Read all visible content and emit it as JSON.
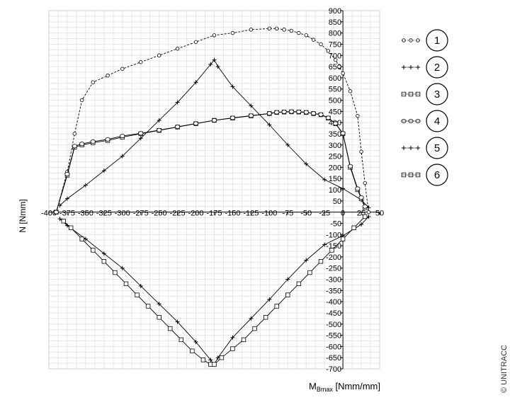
{
  "chart_data": {
    "type": "line",
    "xlabel_main": "M",
    "xlabel_sub": "Bmax",
    "xlabel_rest": " [Nmm/mm]",
    "ylabel": "N [Nmm]",
    "xlim": [
      -400,
      50
    ],
    "ylim": [
      -700,
      900
    ],
    "x_ticks": [
      -400,
      -375,
      -350,
      -325,
      -300,
      -275,
      -250,
      -225,
      -200,
      -175,
      -150,
      -125,
      -100,
      -75,
      -50,
      -25,
      0,
      25,
      50
    ],
    "x_tick_labels": [
      "-400",
      "-375",
      "-350",
      "-325",
      "-300",
      "-275",
      "-250",
      "-225",
      "-200",
      "-175",
      "-150",
      "-125",
      "-100",
      "-75",
      "-50",
      "-25",
      "0",
      "25",
      "50"
    ],
    "y_ticks": [
      900,
      850,
      800,
      750,
      700,
      650,
      600,
      550,
      500,
      450,
      400,
      350,
      300,
      250,
      200,
      150,
      100,
      50,
      -50,
      -100,
      -150,
      -200,
      -250,
      -300,
      -350,
      -400,
      -450,
      -500,
      -550,
      -600,
      -650,
      -700
    ],
    "y_tick_labels": [
      "900",
      "850",
      "800",
      "750",
      "700",
      "650",
      "600",
      "550",
      "500",
      "450",
      "400",
      "350",
      "300",
      "250",
      "200",
      "150",
      "100",
      "50",
      "-50",
      "-100",
      "-150",
      "-200",
      "-250",
      "-300",
      "-350",
      "-400",
      "-450",
      "-500",
      "-550",
      "-600",
      "-650",
      "-700"
    ],
    "grid": true,
    "legend_position": "right",
    "series": [
      {
        "name": "1",
        "marker": "small-circle",
        "dashed": true,
        "x": [
          -390,
          -375,
          -365,
          -355,
          -340,
          -320,
          -300,
          -275,
          -250,
          -225,
          -200,
          -175,
          -150,
          -125,
          -100,
          -90,
          -80,
          -70,
          -60,
          -50,
          -40,
          -30,
          -20,
          -10,
          -5,
          0,
          10,
          20,
          25,
          30,
          35
        ],
        "y": [
          0,
          180,
          350,
          500,
          580,
          610,
          640,
          670,
          700,
          730,
          760,
          790,
          800,
          815,
          820,
          820,
          815,
          810,
          800,
          790,
          770,
          750,
          720,
          680,
          650,
          620,
          540,
          430,
          270,
          130,
          0
        ]
      },
      {
        "name": "2",
        "marker": "plus",
        "dashed": false,
        "x": [
          -385,
          -375,
          -350,
          -325,
          -300,
          -275,
          -250,
          -225,
          -200,
          -180,
          -175,
          -170,
          -150,
          -125,
          -100,
          -75,
          -50,
          -25,
          0,
          25,
          35
        ],
        "y": [
          30,
          60,
          120,
          185,
          250,
          330,
          410,
          490,
          580,
          660,
          680,
          650,
          560,
          475,
          390,
          300,
          215,
          145,
          105,
          55,
          20
        ]
      },
      {
        "name": "3",
        "marker": "square",
        "dashed": false,
        "x": [
          -390,
          -375,
          -365,
          -355,
          -340,
          -320,
          -300,
          -275,
          -250,
          -225,
          -200,
          -175,
          -150,
          -125,
          -100,
          -90,
          -80,
          -70,
          -60,
          -50,
          -40,
          -30,
          -20,
          -10,
          0,
          10,
          20,
          25,
          30
        ],
        "y": [
          0,
          165,
          290,
          300,
          310,
          320,
          335,
          350,
          365,
          380,
          395,
          410,
          420,
          430,
          440,
          445,
          447,
          448,
          447,
          445,
          440,
          435,
          420,
          395,
          350,
          200,
          100,
          60,
          20
        ]
      },
      {
        "name": "4",
        "marker": "circle",
        "dashed": false,
        "x": [
          -390,
          -375,
          -365,
          -355,
          -340,
          -320,
          -300,
          -275,
          -250,
          -225,
          -200,
          -175,
          -150,
          -125,
          -100,
          -90,
          -80,
          -70,
          -60,
          -50,
          -40,
          -30,
          -20,
          -10,
          0,
          10,
          20,
          25,
          30
        ],
        "y": [
          0,
          170,
          295,
          305,
          315,
          325,
          340,
          352,
          366,
          381,
          396,
          410,
          421,
          431,
          441,
          446,
          448,
          449,
          448,
          446,
          441,
          436,
          421,
          396,
          352,
          205,
          105,
          65,
          25
        ]
      },
      {
        "name": "5",
        "marker": "plus",
        "dashed": false,
        "x": [
          -385,
          -375,
          -350,
          -325,
          -300,
          -275,
          -250,
          -225,
          -200,
          -180,
          -175,
          -170,
          -150,
          -125,
          -100,
          -75,
          -50,
          -25,
          0,
          25,
          35
        ],
        "y": [
          -30,
          -60,
          -120,
          -185,
          -250,
          -330,
          -410,
          -490,
          -580,
          -660,
          -680,
          -650,
          -560,
          -475,
          -390,
          -300,
          -215,
          -145,
          -105,
          -55,
          -20
        ]
      },
      {
        "name": "6",
        "marker": "square",
        "dashed": false,
        "x": [
          -380,
          -370,
          -355,
          -340,
          -325,
          -310,
          -295,
          -280,
          -265,
          -250,
          -235,
          -220,
          -205,
          -190,
          -180,
          -175,
          -165,
          -150,
          -135,
          -120,
          -105,
          -90,
          -75,
          -60,
          -45,
          -30,
          -15,
          0,
          15,
          30
        ],
        "y": [
          -40,
          -70,
          -120,
          -170,
          -220,
          -270,
          -320,
          -370,
          -420,
          -470,
          -520,
          -570,
          -620,
          -660,
          -680,
          -680,
          -650,
          -610,
          -570,
          -520,
          -470,
          -420,
          -370,
          -320,
          -270,
          -220,
          -170,
          -120,
          -70,
          -20
        ]
      }
    ]
  },
  "watermark": "© UNITRACC"
}
